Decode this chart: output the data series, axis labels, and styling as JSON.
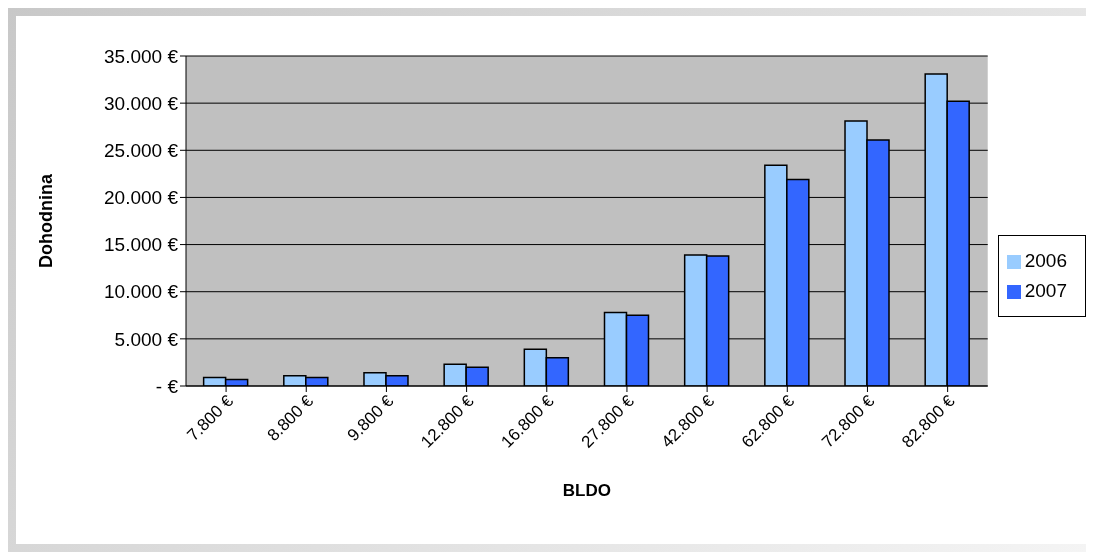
{
  "chart_data": {
    "type": "bar",
    "xlabel": "BLDO",
    "ylabel": "Dohodnina",
    "categories": [
      "7.800 €",
      "8.800 €",
      "9.800 €",
      "12.800 €",
      "16.800 €",
      "27.800 €",
      "42.800 €",
      "62.800 €",
      "72.800 €",
      "82.800 €"
    ],
    "series": [
      {
        "name": "2006",
        "color": "#99ccff",
        "values": [
          900,
          1100,
          1400,
          2300,
          3900,
          7800,
          13900,
          23400,
          28100,
          33100
        ]
      },
      {
        "name": "2007",
        "color": "#3366ff",
        "values": [
          700,
          900,
          1100,
          2000,
          3000,
          7500,
          13800,
          21900,
          26100,
          30200
        ]
      }
    ],
    "ylim": [
      0,
      35000
    ],
    "yticks": [
      {
        "value": 0,
        "label": "- €"
      },
      {
        "value": 5000,
        "label": "5.000 €"
      },
      {
        "value": 10000,
        "label": "10.000 €"
      },
      {
        "value": 15000,
        "label": "15.000 €"
      },
      {
        "value": 20000,
        "label": "20.000 €"
      },
      {
        "value": 25000,
        "label": "25.000 €"
      },
      {
        "value": 30000,
        "label": "30.000 €"
      },
      {
        "value": 35000,
        "label": "35.000 €"
      }
    ],
    "grid": "y",
    "legend": "right"
  }
}
